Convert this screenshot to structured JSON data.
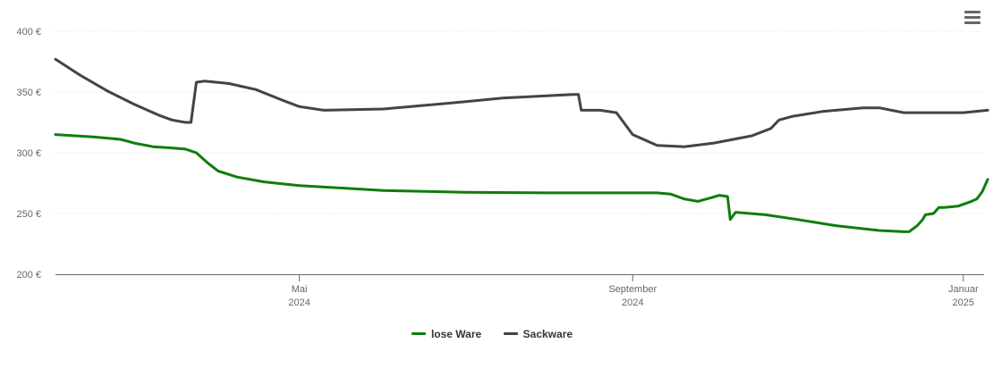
{
  "chart_data": {
    "type": "line",
    "ylim": [
      200,
      400
    ],
    "yticks": [
      200,
      250,
      300,
      350,
      400
    ],
    "ytick_labels": [
      "200 €",
      "250 €",
      "300 €",
      "350 €",
      "400 €"
    ],
    "xlim": [
      "2024-02-01",
      "2025-01-08"
    ],
    "xticks": [
      {
        "date": "2024-05-01",
        "line1": "Mai",
        "line2": "2024"
      },
      {
        "date": "2024-09-01",
        "line1": "September",
        "line2": "2024"
      },
      {
        "date": "2025-01-01",
        "line1": "Januar",
        "line2": "2025"
      }
    ],
    "grid": true,
    "legend_position": "bottom",
    "series": [
      {
        "name": "lose Ware",
        "color": "#0e7d0e",
        "points": [
          [
            "2024-02-01",
            315
          ],
          [
            "2024-02-15",
            313
          ],
          [
            "2024-02-25",
            311
          ],
          [
            "2024-03-01",
            308
          ],
          [
            "2024-03-08",
            305
          ],
          [
            "2024-03-15",
            304
          ],
          [
            "2024-03-20",
            303
          ],
          [
            "2024-03-24",
            300
          ],
          [
            "2024-03-28",
            292
          ],
          [
            "2024-04-01",
            285
          ],
          [
            "2024-04-08",
            280
          ],
          [
            "2024-04-18",
            276
          ],
          [
            "2024-05-01",
            273
          ],
          [
            "2024-06-01",
            269
          ],
          [
            "2024-07-01",
            267.5
          ],
          [
            "2024-08-01",
            267
          ],
          [
            "2024-09-10",
            267
          ],
          [
            "2024-09-15",
            266
          ],
          [
            "2024-09-20",
            262
          ],
          [
            "2024-09-25",
            260
          ],
          [
            "2024-09-30",
            263
          ],
          [
            "2024-10-03",
            265
          ],
          [
            "2024-10-06",
            264
          ],
          [
            "2024-10-07",
            245
          ],
          [
            "2024-10-09",
            251
          ],
          [
            "2024-10-20",
            249
          ],
          [
            "2024-11-01",
            245
          ],
          [
            "2024-11-15",
            240
          ],
          [
            "2024-12-01",
            236
          ],
          [
            "2024-12-10",
            235
          ],
          [
            "2024-12-12",
            235
          ],
          [
            "2024-12-15",
            240
          ],
          [
            "2024-12-17",
            245
          ],
          [
            "2024-12-18",
            249
          ],
          [
            "2024-12-21",
            250
          ],
          [
            "2024-12-23",
            255
          ],
          [
            "2024-12-25",
            255
          ],
          [
            "2024-12-30",
            256
          ],
          [
            "2025-01-04",
            260
          ],
          [
            "2025-01-06",
            262
          ],
          [
            "2025-01-07",
            265
          ],
          [
            "2025-01-08",
            268
          ],
          [
            "2025-01-09",
            273
          ],
          [
            "2025-01-10",
            278
          ]
        ]
      },
      {
        "name": "Sackware",
        "color": "#434348",
        "points": [
          [
            "2024-02-01",
            377
          ],
          [
            "2024-02-10",
            364
          ],
          [
            "2024-02-20",
            351
          ],
          [
            "2024-03-01",
            340
          ],
          [
            "2024-03-10",
            331
          ],
          [
            "2024-03-15",
            327
          ],
          [
            "2024-03-20",
            325
          ],
          [
            "2024-03-22",
            325
          ],
          [
            "2024-03-24",
            358
          ],
          [
            "2024-03-27",
            359
          ],
          [
            "2024-04-05",
            357
          ],
          [
            "2024-04-15",
            352
          ],
          [
            "2024-04-25",
            343
          ],
          [
            "2024-05-01",
            338
          ],
          [
            "2024-05-10",
            335
          ],
          [
            "2024-06-01",
            336
          ],
          [
            "2024-07-01",
            342
          ],
          [
            "2024-07-15",
            345
          ],
          [
            "2024-08-01",
            347
          ],
          [
            "2024-08-10",
            348
          ],
          [
            "2024-08-12",
            348
          ],
          [
            "2024-08-13",
            335
          ],
          [
            "2024-08-20",
            335
          ],
          [
            "2024-08-26",
            333
          ],
          [
            "2024-09-01",
            315
          ],
          [
            "2024-09-10",
            306
          ],
          [
            "2024-09-20",
            305
          ],
          [
            "2024-10-01",
            308
          ],
          [
            "2024-10-15",
            314
          ],
          [
            "2024-10-22",
            320
          ],
          [
            "2024-10-25",
            327
          ],
          [
            "2024-10-30",
            330
          ],
          [
            "2024-11-10",
            334
          ],
          [
            "2024-11-25",
            337
          ],
          [
            "2024-12-01",
            337
          ],
          [
            "2024-12-10",
            333
          ],
          [
            "2024-12-20",
            333
          ],
          [
            "2025-01-01",
            333
          ],
          [
            "2025-01-10",
            335
          ]
        ]
      }
    ]
  },
  "legend": {
    "items": [
      {
        "label": "lose Ware",
        "color": "#0e7d0e"
      },
      {
        "label": "Sackware",
        "color": "#434348"
      }
    ]
  },
  "menu": {
    "icon": "hamburger-menu-icon"
  }
}
